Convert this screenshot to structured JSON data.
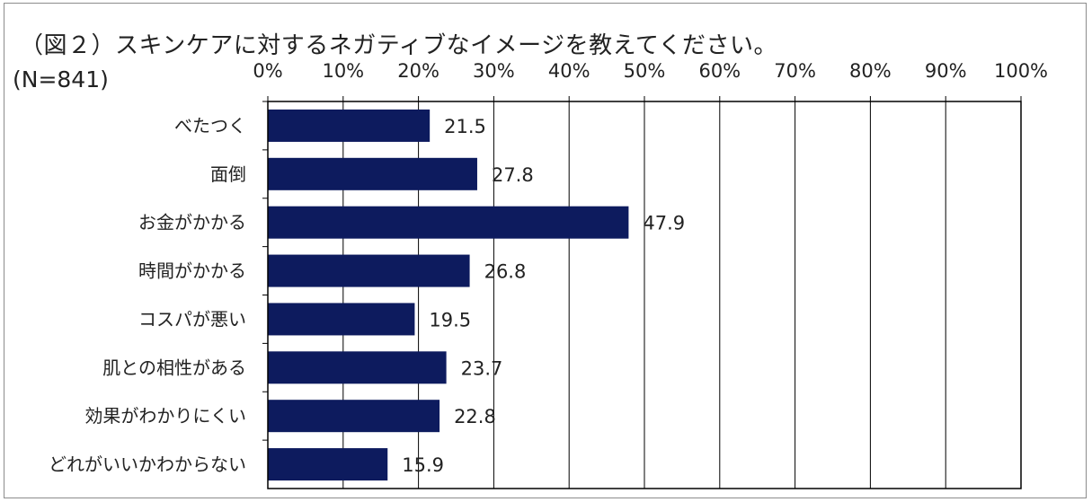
{
  "title": "（図２）スキンケアに対するネガティブなイメージを教えてください。",
  "sample_label": "(N=841)",
  "chart_data": {
    "type": "bar",
    "orientation": "horizontal",
    "categories": [
      "べたつく",
      "面倒",
      "お金がかかる",
      "時間がかかる",
      "コスパが悪い",
      "肌との相性がある",
      "効果がわかりにくい",
      "どれがいいかわからない"
    ],
    "values": [
      21.5,
      27.8,
      47.9,
      26.8,
      19.5,
      23.7,
      22.8,
      15.9
    ],
    "value_labels": [
      "21.5",
      "27.8",
      "47.9",
      "26.8",
      "19.5",
      "23.7",
      "22.8",
      "15.9"
    ],
    "xlim": [
      0,
      100
    ],
    "ticks": [
      0,
      10,
      20,
      30,
      40,
      50,
      60,
      70,
      80,
      90,
      100
    ],
    "tick_labels": [
      "0%",
      "10%",
      "20%",
      "30%",
      "40%",
      "50%",
      "60%",
      "70%",
      "80%",
      "90%",
      "100%"
    ],
    "axis_position": "top",
    "grid": true,
    "legend": "none",
    "bar_color": "#0d1b5e"
  }
}
